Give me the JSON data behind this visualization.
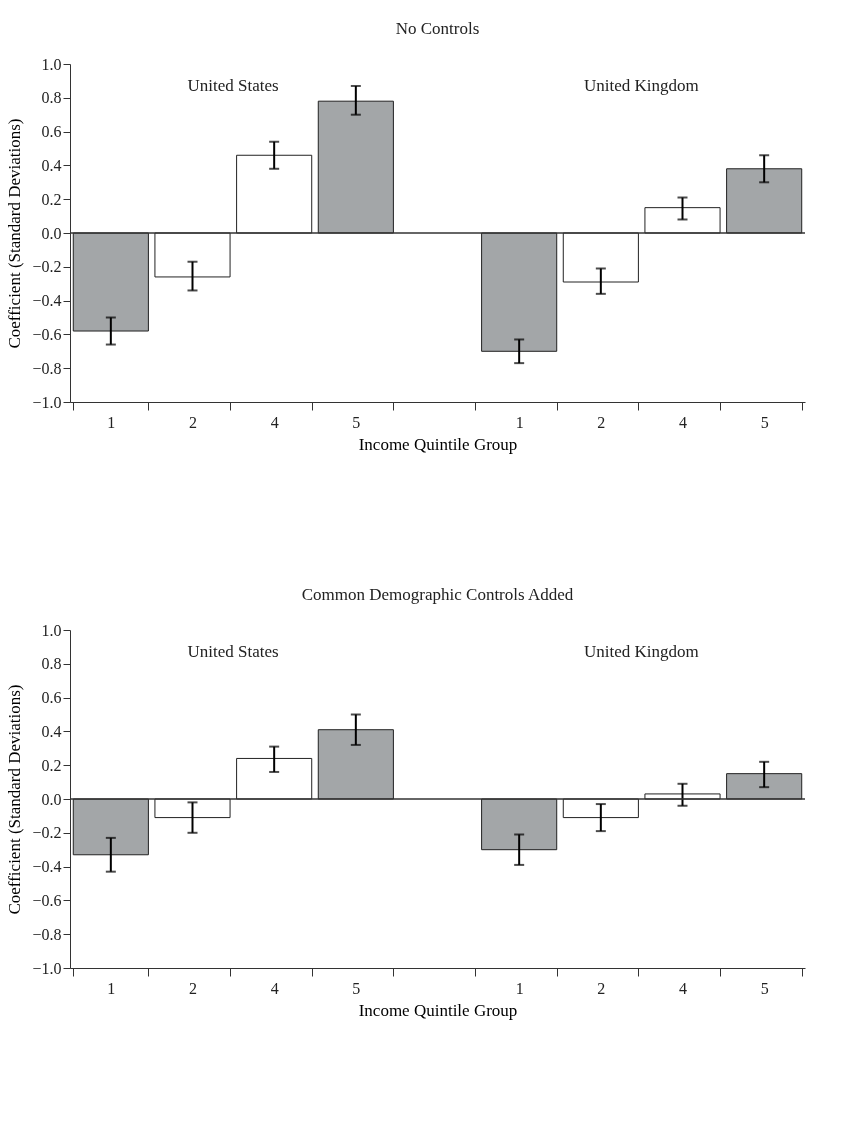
{
  "chart_data": [
    {
      "type": "bar",
      "title": "No Controls",
      "xlabel": "Income Quintile Group",
      "ylabel": "Coefficient (Standard Deviations)",
      "categories": [
        "1",
        "2",
        "4",
        "5",
        null,
        "1",
        "2",
        "4",
        "5"
      ],
      "values": [
        -0.58,
        -0.26,
        0.46,
        0.78,
        null,
        -0.7,
        -0.29,
        0.15,
        0.38
      ],
      "errors": [
        [
          -0.66,
          -0.5
        ],
        [
          -0.34,
          -0.17
        ],
        [
          0.38,
          0.54
        ],
        [
          0.7,
          0.87
        ],
        null,
        [
          -0.77,
          -0.63
        ],
        [
          -0.36,
          -0.21
        ],
        [
          0.08,
          0.21
        ],
        [
          0.3,
          0.46
        ]
      ],
      "colors": [
        "#a3a6a8",
        "#ffffff",
        "#ffffff",
        "#a3a6a8",
        null,
        "#a3a6a8",
        "#ffffff",
        "#ffffff",
        "#a3a6a8"
      ],
      "annotations": [
        "United States",
        "United Kingdom"
      ],
      "ref_lines": [
        {
          "axis": "y",
          "value": 0
        }
      ],
      "ylim": [
        -1,
        1
      ],
      "yticks": [
        {
          "value": -1,
          "label": "−1.0"
        },
        {
          "value": -0.8,
          "label": "−0.8"
        },
        {
          "value": -0.6,
          "label": "−0.6"
        },
        {
          "value": -0.4,
          "label": "−0.4"
        },
        {
          "value": -0.2,
          "label": "−0.2"
        },
        {
          "value": 0,
          "label": "0.0"
        },
        {
          "value": 0.2,
          "label": "0.2"
        },
        {
          "value": 0.4,
          "label": "0.4"
        },
        {
          "value": 0.6,
          "label": "0.6"
        },
        {
          "value": 0.8,
          "label": "0.8"
        },
        {
          "value": 1,
          "label": "1.0"
        }
      ]
    },
    {
      "type": "bar",
      "title": "Common Demographic Controls Added",
      "xlabel": "Income Quintile Group",
      "ylabel": "Coefficient (Standard Deviations)",
      "categories": [
        "1",
        "2",
        "4",
        "5",
        null,
        "1",
        "2",
        "4",
        "5"
      ],
      "values": [
        -0.33,
        -0.11,
        0.24,
        0.41,
        null,
        -0.3,
        -0.11,
        0.03,
        0.15
      ],
      "errors": [
        [
          -0.43,
          -0.23
        ],
        [
          -0.2,
          -0.02
        ],
        [
          0.16,
          0.31
        ],
        [
          0.32,
          0.5
        ],
        null,
        [
          -0.39,
          -0.21
        ],
        [
          -0.19,
          -0.03
        ],
        [
          -0.04,
          0.09
        ],
        [
          0.07,
          0.22
        ]
      ],
      "colors": [
        "#a3a6a8",
        "#ffffff",
        "#ffffff",
        "#a3a6a8",
        null,
        "#a3a6a8",
        "#ffffff",
        "#ffffff",
        "#a3a6a8"
      ],
      "annotations": [
        "United States",
        "United Kingdom"
      ],
      "ref_lines": [
        {
          "axis": "y",
          "value": 0
        }
      ],
      "ylim": [
        -1,
        1
      ],
      "yticks": [
        {
          "value": -1,
          "label": "−1.0"
        },
        {
          "value": -0.8,
          "label": "−0.8"
        },
        {
          "value": -0.6,
          "label": "−0.6"
        },
        {
          "value": -0.4,
          "label": "−0.4"
        },
        {
          "value": -0.2,
          "label": "−0.2"
        },
        {
          "value": 0,
          "label": "0.0"
        },
        {
          "value": 0.2,
          "label": "0.2"
        },
        {
          "value": 0.4,
          "label": "0.4"
        },
        {
          "value": 0.6,
          "label": "0.6"
        },
        {
          "value": 0.8,
          "label": "0.8"
        },
        {
          "value": 1,
          "label": "1.0"
        }
      ]
    }
  ]
}
